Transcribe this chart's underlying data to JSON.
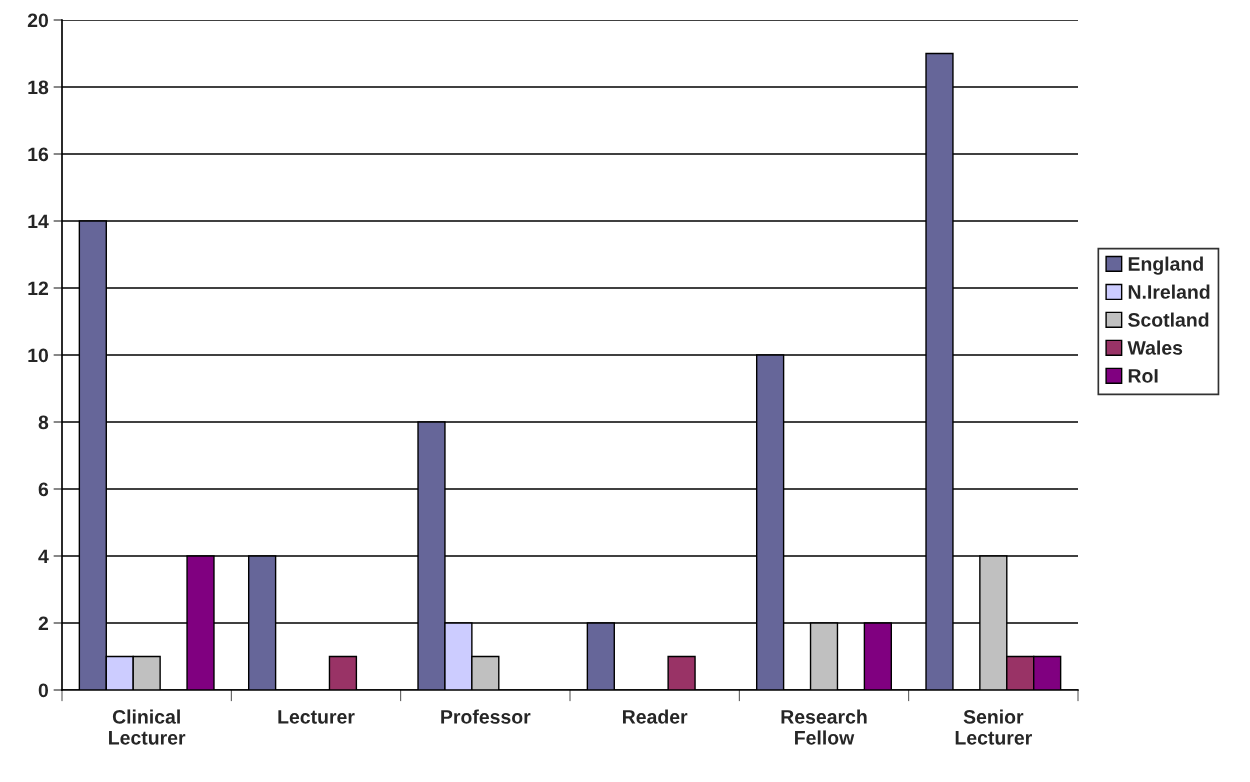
{
  "chart_data": {
    "type": "bar",
    "categories": [
      "Clinical Lecturer",
      "Lecturer",
      "Professor",
      "Reader",
      "Research Fellow",
      "Senior Lecturer"
    ],
    "series": [
      {
        "name": "England",
        "color": "#666699",
        "values": [
          14,
          4,
          8,
          2,
          10,
          19
        ]
      },
      {
        "name": "N.Ireland",
        "color": "#ccccff",
        "values": [
          1,
          0,
          2,
          0,
          0,
          0
        ]
      },
      {
        "name": "Scotland",
        "color": "#c0c0c0",
        "values": [
          1,
          0,
          1,
          0,
          2,
          4
        ]
      },
      {
        "name": "Wales",
        "color": "#993366",
        "values": [
          0,
          1,
          0,
          1,
          0,
          1
        ]
      },
      {
        "name": "RoI",
        "color": "#800080",
        "values": [
          4,
          0,
          0,
          0,
          2,
          1
        ]
      }
    ],
    "ylim": [
      0,
      20
    ],
    "yticks": [
      0,
      2,
      4,
      6,
      8,
      10,
      12,
      14,
      16,
      18,
      20
    ],
    "grid": "y",
    "legend": "right"
  }
}
